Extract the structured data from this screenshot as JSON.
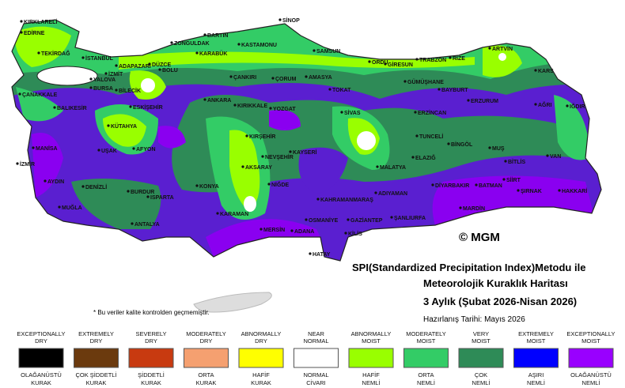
{
  "copyright": "© MGM",
  "title": [
    "SPI(Standardized Precipitation Index)Metodu ile",
    "Meteorolojik Kuraklık Haritası",
    "3 Aylık (Şubat 2026-Nisan 2026)"
  ],
  "date": "Hazırlanış Tarihi: Mayıs 2026",
  "footnote": "* Bu veriler kalite kontrolden geçmemiştir.",
  "cities": [
    "KIRKLARELİ",
    "EDİRNE",
    "TEKİRDAĞ",
    "İSTANBUL",
    "ADAPAZARI",
    "DÜZCE",
    "BOLU",
    "İZMİT",
    "YALOVA",
    "BURSA",
    "BİLECİK",
    "ÇANAKKALE",
    "BALIKESİR",
    "ESKİŞEHİR",
    "KÜTAHYA",
    "BARTIN",
    "ZONGULDAK",
    "KARABÜK",
    "KASTAMONU",
    "SİNOP",
    "SAMSUN",
    "ÇANKIRI",
    "ÇORUM",
    "AMASYA",
    "ORDU",
    "GİRESUN",
    "TRABZON",
    "RİZE",
    "ARTVİN",
    "KARS",
    "GÜMÜŞHANE",
    "BAYBURT",
    "TOKAT",
    "ANKARA",
    "KIRIKKALE",
    "YOZGAT",
    "SİVAS",
    "ERZİNCAN",
    "ERZURUM",
    "AĞRI",
    "IĞDIR",
    "MANİSA",
    "İZMİR",
    "UŞAK",
    "AFYON",
    "KIRŞEHİR",
    "NEVŞEHİR",
    "KAYSERİ",
    "TUNCELİ",
    "BİNGÖL",
    "MUŞ",
    "BİTLİS",
    "VAN",
    "AKSARAY",
    "ELAZIĞ",
    "MALATYA",
    "AYDIN",
    "DENİZLİ",
    "BURDUR",
    "ISPARTA",
    "KONYA",
    "NİĞDE",
    "DİYARBAKIR",
    "BATMAN",
    "SİİRT",
    "ŞIRNAK",
    "HAKKARİ",
    "MUĞLA",
    "ANTALYA",
    "KARAMAN",
    "KAHRAMANMARAŞ",
    "ADIYAMAN",
    "MARDİN",
    "ŞANLIURFA",
    "OSMANİYE",
    "GAZİANTEP",
    "MERSİN",
    "ADANA",
    "KİLİS",
    "HATAY"
  ],
  "legend": [
    {
      "top": [
        "EXCEPTIONALLY",
        "DRY"
      ],
      "bottom": [
        "OLAĞANÜSTÜ",
        "KURAK"
      ],
      "color": "#000000"
    },
    {
      "top": [
        "EXTREMELY",
        "DRY"
      ],
      "bottom": [
        "ÇOK ŞİDDETLİ",
        "KURAK"
      ],
      "color": "#6b3a0e"
    },
    {
      "top": [
        "SEVERELY",
        "DRY"
      ],
      "bottom": [
        "ŞİDDETLİ",
        "KURAK"
      ],
      "color": "#c83a10"
    },
    {
      "top": [
        "MODERATELY",
        "DRY"
      ],
      "bottom": [
        "ORTA",
        "KURAK"
      ],
      "color": "#f5a070"
    },
    {
      "top": [
        "ABNORMALLY",
        "DRY"
      ],
      "bottom": [
        "HAFİF",
        "KURAK"
      ],
      "color": "#ffff00"
    },
    {
      "top": [
        "NEAR",
        "NORMAL"
      ],
      "bottom": [
        "NORMAL",
        "CİVARI"
      ],
      "color": "#ffffff"
    },
    {
      "top": [
        "ABNORMALLY",
        "MOIST"
      ],
      "bottom": [
        "HAFİF",
        "NEMLİ"
      ],
      "color": "#99ff00"
    },
    {
      "top": [
        "MODERATELY",
        "MOIST"
      ],
      "bottom": [
        "ORTA",
        "NEMLİ"
      ],
      "color": "#33cc66"
    },
    {
      "top": [
        "VERY",
        "MOIST"
      ],
      "bottom": [
        "ÇOK",
        "NEMLİ"
      ],
      "color": "#2e8b57"
    },
    {
      "top": [
        "EXTREMELY",
        "MOIST"
      ],
      "bottom": [
        "AŞIRI",
        "NEMLİ"
      ],
      "color": "#0000ff"
    },
    {
      "top": [
        "EXCEPTIONALLY",
        "MOIST"
      ],
      "bottom": [
        "OLAĞANÜSTÜ",
        "NEMLİ"
      ],
      "color": "#9900ff"
    }
  ]
}
